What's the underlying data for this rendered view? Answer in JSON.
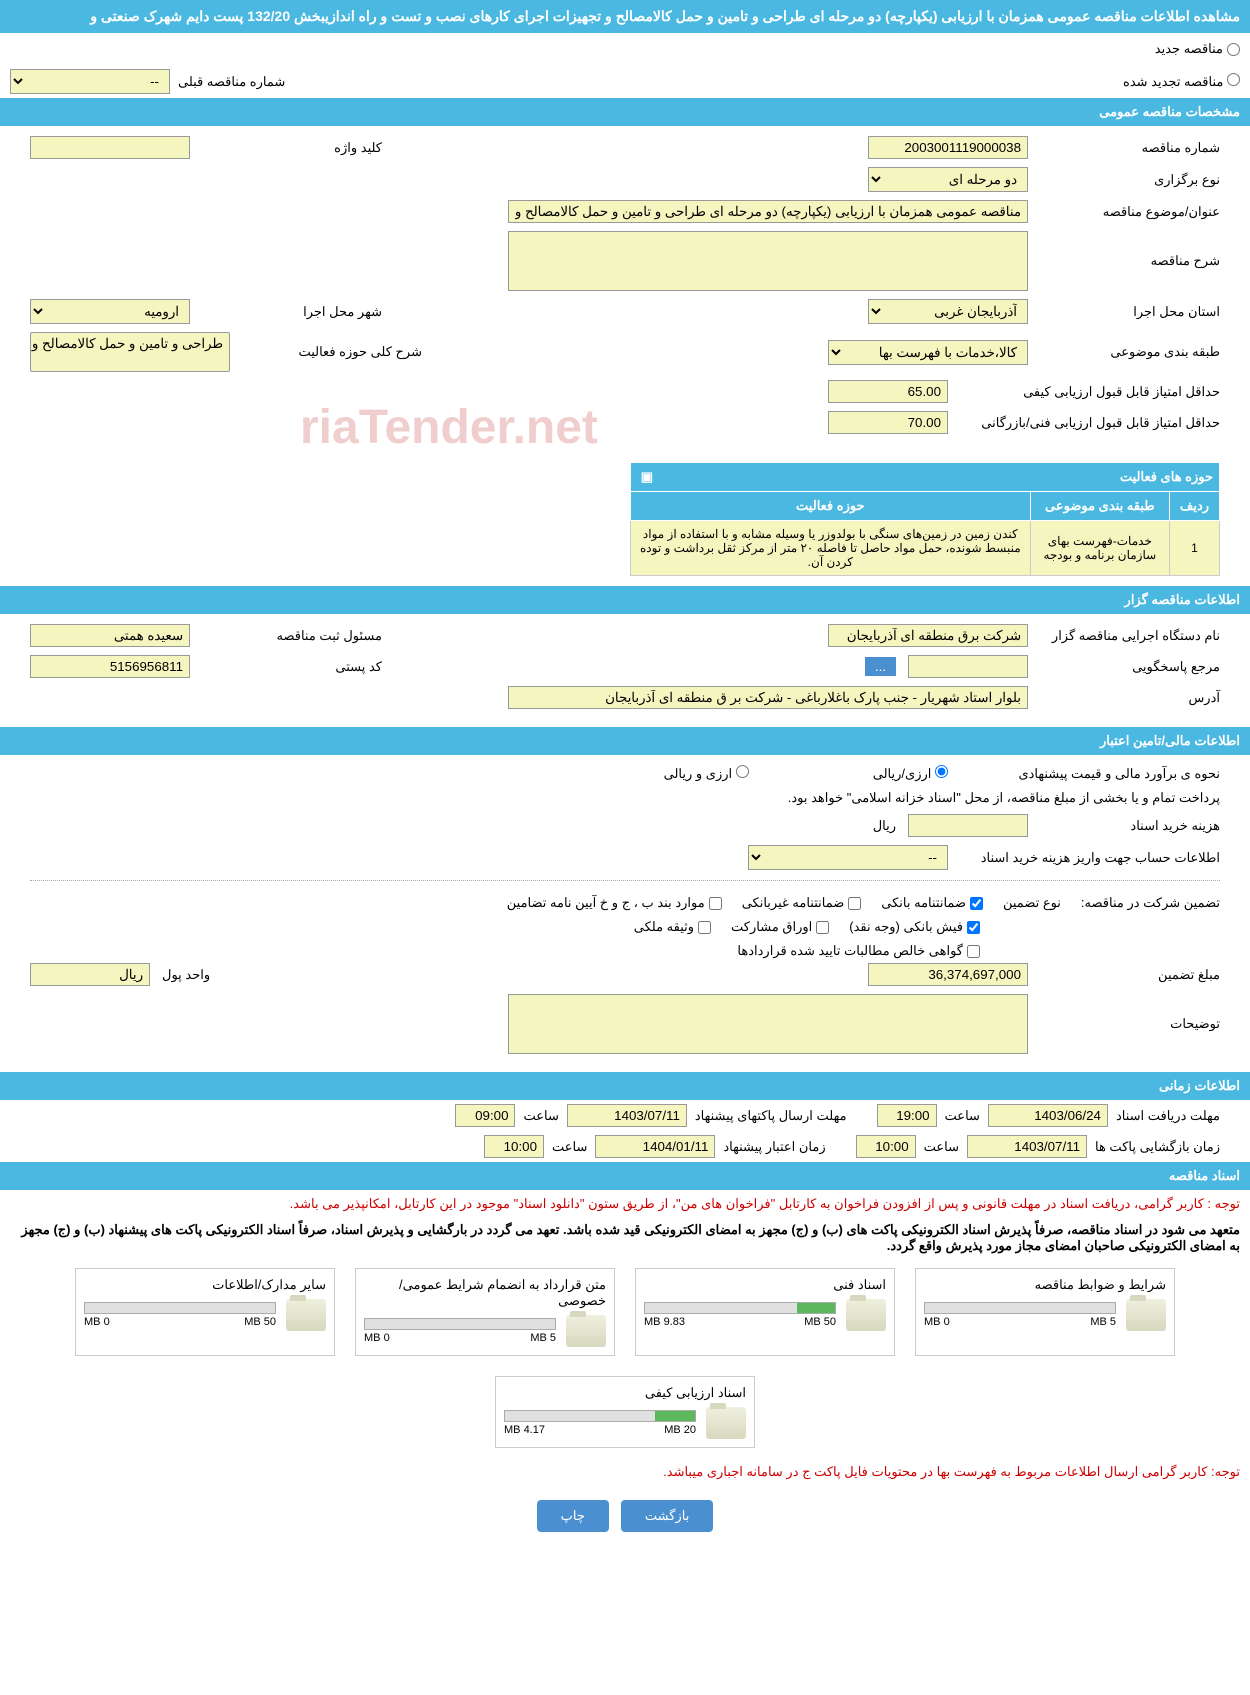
{
  "page": {
    "title": "مشاهده اطلاعات مناقصه عمومی همزمان با ارزیابی (یکپارچه) دو مرحله ای طراحی و تامین و حمل کالامصالح و تجهیزات اجرای کارهای نصب و تست و راه اندازیبخش 132/20 پست دایم شهرک صنعتی و"
  },
  "radios": {
    "new": "مناقصه جدید",
    "renewed": "مناقصه تجدید شده",
    "prev_label": "شماره مناقصه قبلی",
    "prev_value": "--"
  },
  "sections": {
    "general": "مشخصات مناقصه عمومی",
    "agency": "اطلاعات مناقصه گزار",
    "finance": "اطلاعات مالی/تامین اعتبار",
    "timing": "اطلاعات زمانی",
    "docs": "اسناد مناقصه"
  },
  "general": {
    "number_label": "شماره مناقصه",
    "number": "2003001119000038",
    "keyword_label": "کلید واژه",
    "keyword": "",
    "type_label": "نوع برگزاری",
    "type": "دو مرحله ای",
    "subject_label": "عنوان/موضوع مناقصه",
    "subject": "مناقصه عمومی همزمان با ارزیابی (یکپارچه) دو مرحله ای طراحی و تامین و حمل کالامصالح و تجهیزات",
    "desc_label": "شرح مناقصه",
    "desc": "",
    "province_label": "استان محل اجرا",
    "province": "آذربایجان غربی",
    "city_label": "شهر محل اجرا",
    "city": "ارومیه",
    "category_label": "طبقه بندی موضوعی",
    "category": "کالا،خدمات با فهرست بها",
    "activity_desc_label": "شرح کلی حوزه فعالیت",
    "activity_desc": "طراحی و تامین و حمل کالامصالح و تجهیزات اجرای",
    "min_score_quality_label": "حداقل امتیاز قابل قبول ارزیابی کیفی",
    "min_score_quality": "65.00",
    "min_score_tech_label": "حداقل امتیاز قابل قبول ارزیابی فنی/بازرگانی",
    "min_score_tech": "70.00"
  },
  "activity_table": {
    "header_title": "حوزه های فعالیت",
    "col_row": "ردیف",
    "col_category": "طبقه بندی موضوعی",
    "col_activity": "حوزه فعالیت",
    "rows": [
      {
        "idx": "1",
        "category": "خدمات-فهرست بهای سازمان برنامه و بودجه",
        "activity": "کندن زمین در زمین‌های سنگی با بولدوزر یا وسیله مشابه و با استفاده از مواد منبسط شونده، حمل مواد حاصل تا فاصله ۲۰ متر از مرکز ثقل برداشت و توده کردن آن."
      }
    ]
  },
  "agency": {
    "name_label": "نام دستگاه اجرایی مناقصه گزار",
    "name": "شرکت برق منطقه ای آذربایجان",
    "registrar_label": "مسئول ثبت مناقصه",
    "registrar": "سعیده همتی",
    "contact_label": "مرجع پاسخگویی",
    "contact": "",
    "postal_label": "کد پستی",
    "postal": "5156956811",
    "address_label": "آدرس",
    "address": "بلوار استاد شهریار - جنب پارک باغلارباغی - شرکت بر ق منطقه ای آذربایجان"
  },
  "finance": {
    "method_label": "نحوه ی برآورد مالی و قیمت پیشنهادی",
    "method_rial": "ارزی/ریالی",
    "method_both": "ارزی و ریالی",
    "note": "پرداخت تمام و یا بخشی از مبلغ مناقصه، از محل \"اسناد خزانه اسلامی\" خواهد بود.",
    "doc_fee_label": "هزینه خرید اسناد",
    "doc_fee": "",
    "doc_fee_unit": "ریال",
    "account_label": "اطلاعات حساب جهت واریز هزینه خرید اسناد",
    "account": "--",
    "guarantee_label": "تضمین شرکت در مناقصه:",
    "guarantee_type_label": "نوع تضمین",
    "cb_bank": "ضمانتنامه بانکی",
    "cb_nonbank": "ضمانتنامه غیربانکی",
    "cb_bond": "موارد بند ب ، ج و خ آیین نامه تضامین",
    "cb_cash": "فیش بانکی (وجه نقد)",
    "cb_shares": "اوراق مشارکت",
    "cb_property": "وثیقه ملکی",
    "cb_receivable": "گواهی خالص مطالبات تایید شده قراردادها",
    "amount_label": "مبلغ تضمین",
    "amount": "36,374,697,000",
    "unit_label": "واحد پول",
    "unit": "ریال",
    "notes_label": "توضیحات",
    "notes": ""
  },
  "timing": {
    "receive_label": "مهلت دریافت اسناد",
    "receive_date": "1403/06/24",
    "receive_time": "19:00",
    "envelope_label": "مهلت ارسال پاکتهای پیشنهاد",
    "envelope_date": "1403/07/11",
    "envelope_time": "09:00",
    "open_label": "زمان بازگشایی پاکت ها",
    "open_date": "1403/07/11",
    "open_time": "10:00",
    "validity_label": "زمان اعتبار پیشنهاد",
    "validity_date": "1404/01/11",
    "validity_time": "10:00",
    "time_label": "ساعت"
  },
  "docs": {
    "note1": "توجه : کاربر گرامی، دریافت اسناد در مهلت قانونی و پس از افزودن فراخوان به کارتابل \"فراخوان های من\"، از طریق ستون \"دانلود اسناد\" موجود در این کارتابل، امکانپذیر می باشد.",
    "note2": "متعهد می شود در اسناد مناقصه، صرفاً پذیرش اسناد الکترونیکی پاکت های (ب) و (ج) مجهز به امضای الکترونیکی قید شده باشد. تعهد می گردد در بارگشایی و پذیرش اسناد، صرفاً اسناد الکترونیکی پاکت های پیشنهاد (ب) و (ج) مجهز به امضای الکترونیکی صاحبان امضای مجاز مورد پذیرش واقع گردد.",
    "note3": "توجه: کاربر گرامی ارسال اطلاعات مربوط به فهرست بها در محتویات فایل پاکت ج در سامانه اجباری میباشد.",
    "items": [
      {
        "title": "شرایط و ضوابط مناقصه",
        "used": "0 MB",
        "total": "5 MB",
        "pct": 0
      },
      {
        "title": "اسناد فنی",
        "used": "9.83 MB",
        "total": "50 MB",
        "pct": 20
      },
      {
        "title": "متن قرارداد به انضمام شرایط عمومی/خصوصی",
        "used": "0 MB",
        "total": "5 MB",
        "pct": 0
      },
      {
        "title": "سایر مدارک/اطلاعات",
        "used": "0 MB",
        "total": "50 MB",
        "pct": 0
      },
      {
        "title": "اسناد ارزیابی کیفی",
        "used": "4.17 MB",
        "total": "20 MB",
        "pct": 21
      }
    ]
  },
  "buttons": {
    "back": "بازگشت",
    "print": "چاپ"
  },
  "watermark": "riaTender.net",
  "colors": {
    "header": "#4ab8e0",
    "input_bg": "#f5f5c0",
    "btn": "#4a90d0",
    "red": "#c00",
    "progress": "#5cb85c"
  }
}
